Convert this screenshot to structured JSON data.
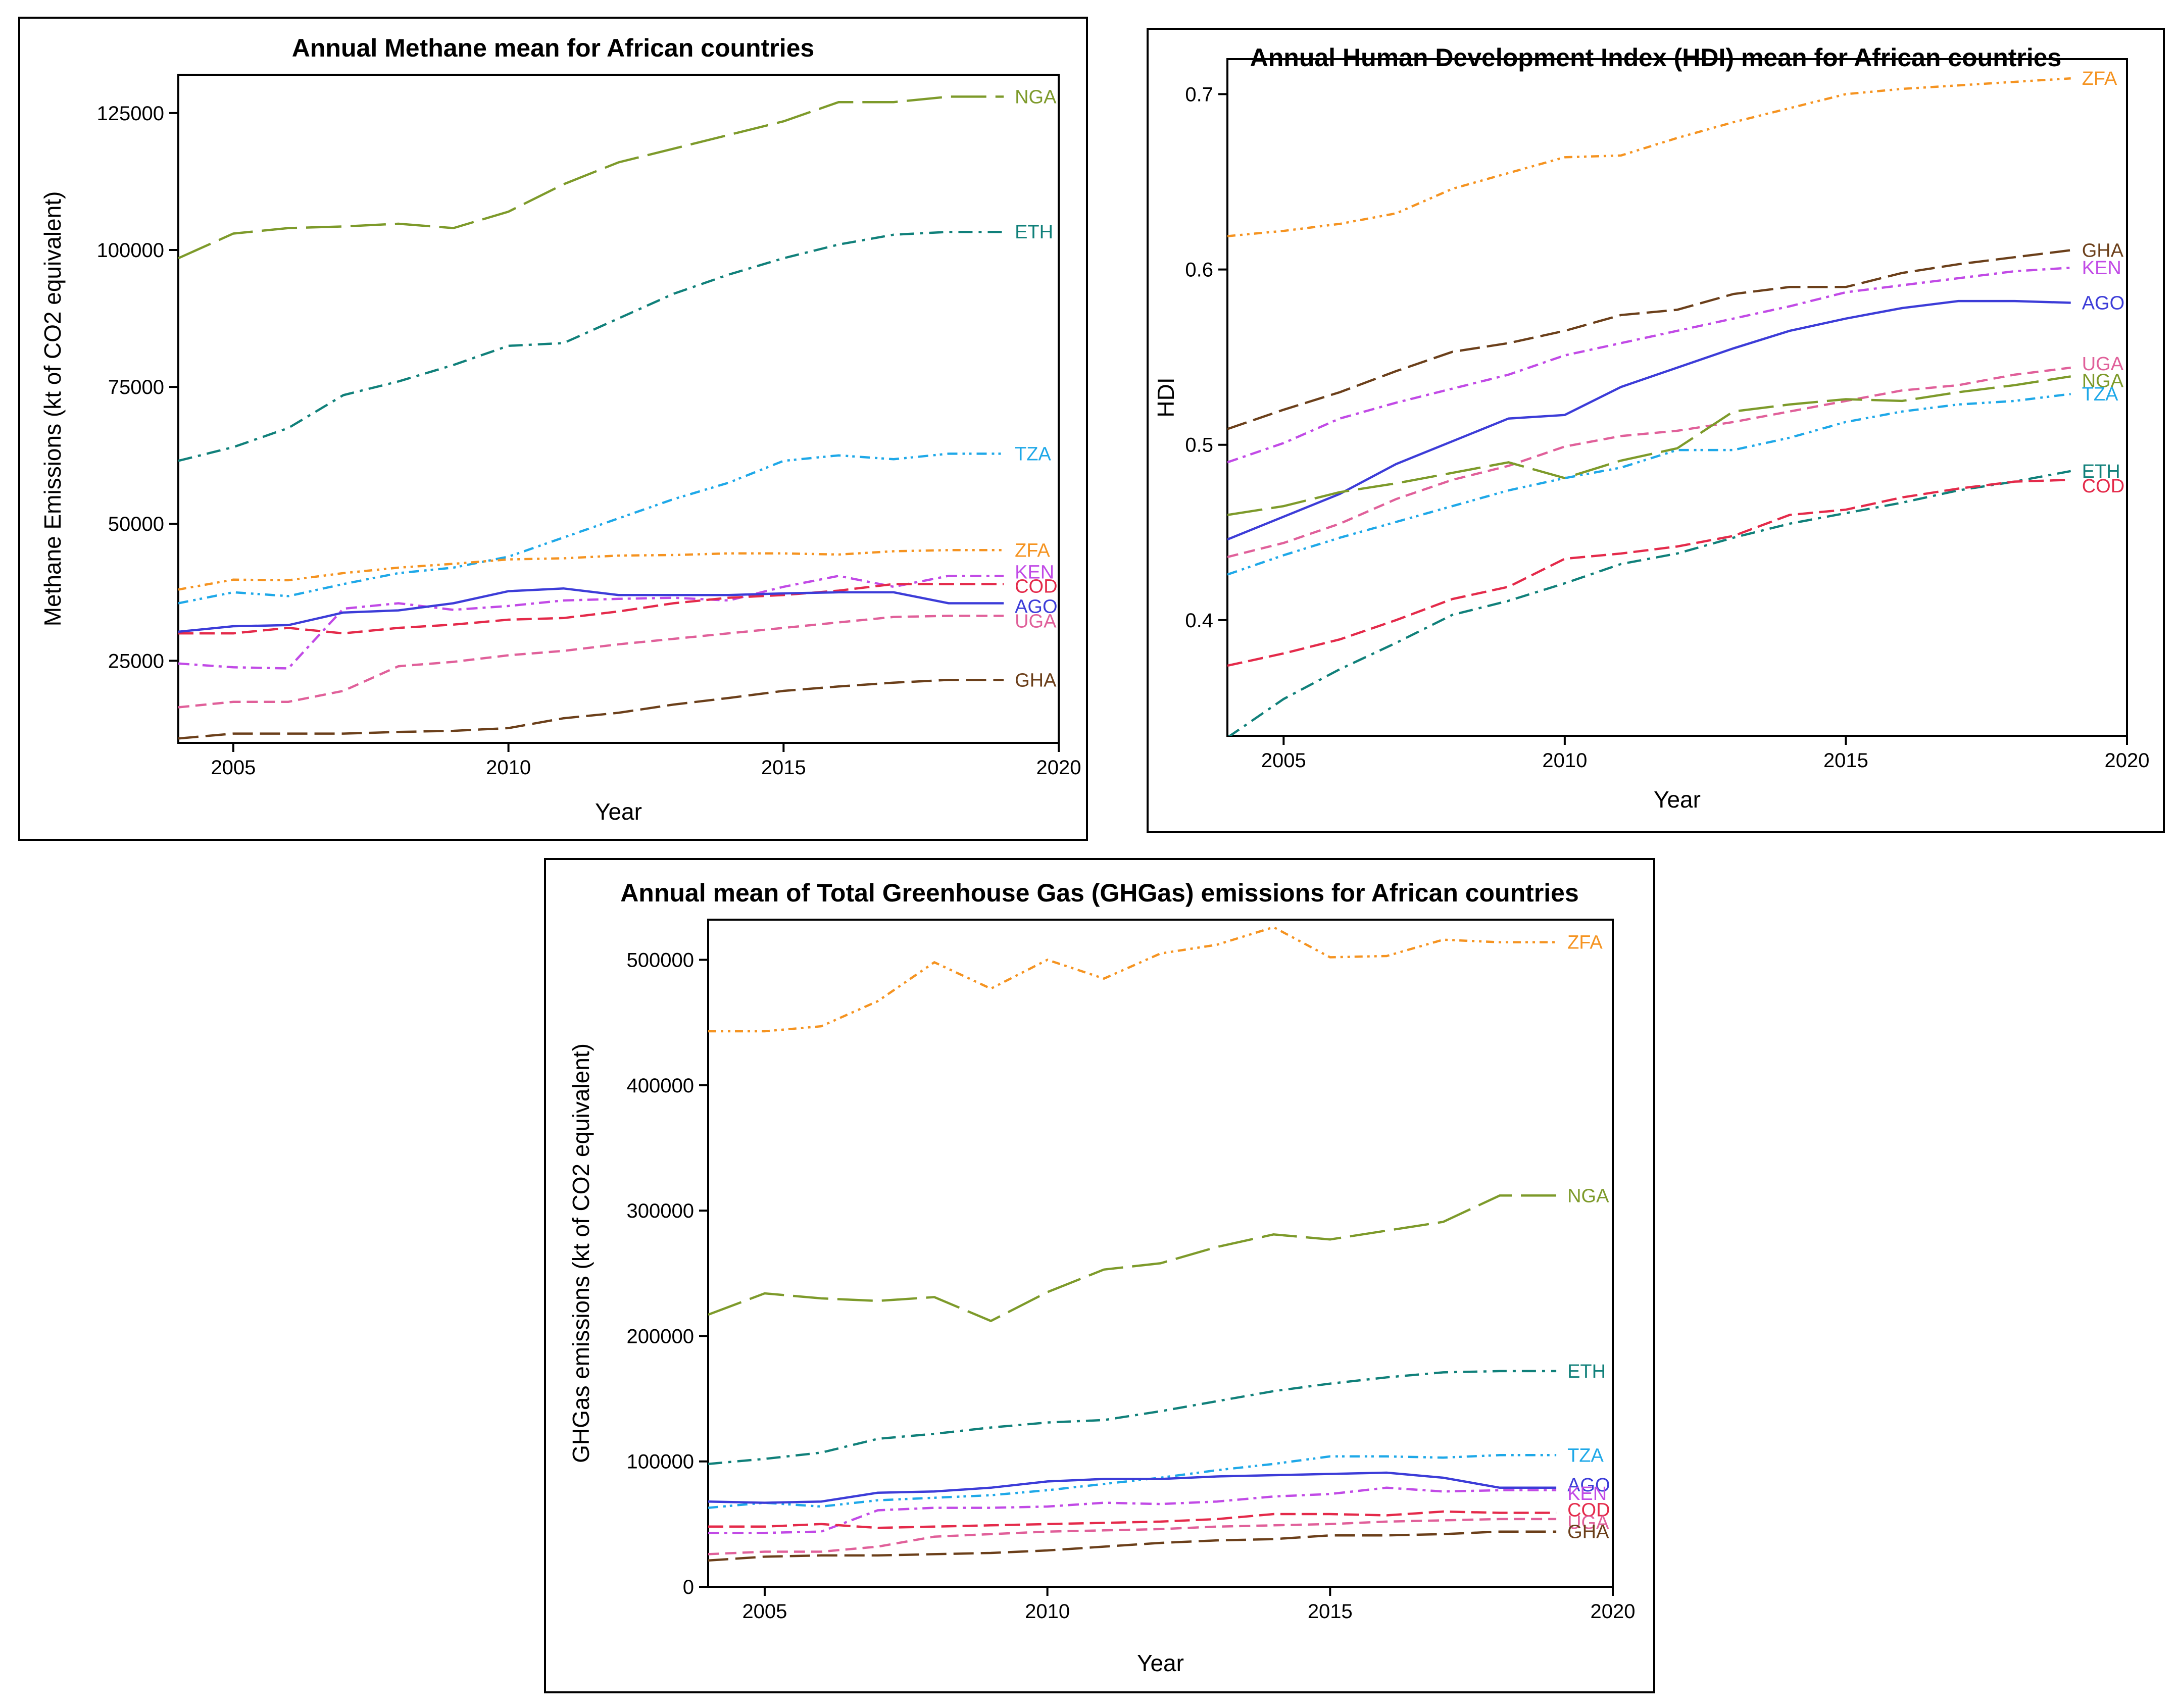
{
  "chart_data": [
    {
      "id": "methane",
      "type": "line",
      "title": "Annual Methane mean for African countries",
      "xlabel": "Year",
      "ylabel": "Methane Emissions (kt of CO2 equivalent)",
      "xlim": [
        2004,
        2020
      ],
      "ylim": [
        10000,
        132000
      ],
      "xticks": [
        2005,
        2010,
        2015,
        2020
      ],
      "yticks": [
        25000,
        50000,
        75000,
        100000,
        125000
      ],
      "x": [
        2004,
        2005,
        2006,
        2007,
        2008,
        2009,
        2010,
        2011,
        2012,
        2013,
        2014,
        2015,
        2016,
        2017,
        2018,
        2019
      ],
      "series": [
        {
          "name": "NGA",
          "values": [
            98500,
            103000,
            104000,
            104300,
            104800,
            104000,
            107000,
            112000,
            116000,
            118500,
            121000,
            123500,
            127000,
            127000,
            128000,
            128000
          ]
        },
        {
          "name": "ETH",
          "values": [
            61500,
            64000,
            67500,
            73500,
            76000,
            79000,
            82500,
            83000,
            87500,
            92000,
            95500,
            98500,
            101000,
            102800,
            103300,
            103300
          ]
        },
        {
          "name": "TZA",
          "values": [
            35500,
            37500,
            36800,
            39000,
            41000,
            42000,
            44000,
            47500,
            51000,
            54500,
            57500,
            61500,
            62500,
            61800,
            62800,
            62800
          ]
        },
        {
          "name": "ZFA",
          "values": [
            38000,
            39800,
            39700,
            41000,
            42000,
            42700,
            43500,
            43700,
            44200,
            44300,
            44600,
            44600,
            44400,
            45000,
            45200,
            45200
          ]
        },
        {
          "name": "KEN",
          "values": [
            24500,
            23800,
            23600,
            34500,
            35500,
            34300,
            35000,
            36000,
            36300,
            36500,
            36000,
            38500,
            40500,
            38500,
            40500,
            40500
          ]
        },
        {
          "name": "COD",
          "values": [
            30000,
            30000,
            31000,
            30000,
            31000,
            31600,
            32500,
            32800,
            34000,
            35500,
            36500,
            37000,
            37800,
            39000,
            39000,
            39000
          ]
        },
        {
          "name": "AGO",
          "values": [
            30300,
            31300,
            31500,
            33800,
            34200,
            35500,
            37700,
            38200,
            37000,
            37000,
            37000,
            37300,
            37500,
            37500,
            35500,
            35500
          ]
        },
        {
          "name": "UGA",
          "values": [
            16500,
            17500,
            17500,
            19500,
            24000,
            24800,
            26000,
            26800,
            28000,
            29000,
            30000,
            31000,
            32000,
            33000,
            33200,
            33200
          ]
        },
        {
          "name": "GHA",
          "values": [
            10800,
            11700,
            11700,
            11700,
            12000,
            12200,
            12700,
            14500,
            15500,
            17000,
            18200,
            19500,
            20300,
            21000,
            21500,
            21500
          ]
        }
      ]
    },
    {
      "id": "hdi",
      "type": "line",
      "title": "Annual Human Development Index (HDI) mean for African countries",
      "xlabel": "Year",
      "ylabel": "HDI",
      "xlim": [
        2004,
        2020
      ],
      "ylim": [
        0.334,
        0.72
      ],
      "xticks": [
        2005,
        2010,
        2015,
        2020
      ],
      "yticks": [
        0.4,
        0.5,
        0.6,
        0.7
      ],
      "x": [
        2004,
        2005,
        2006,
        2007,
        2008,
        2009,
        2010,
        2011,
        2012,
        2013,
        2014,
        2015,
        2016,
        2017,
        2018,
        2019
      ],
      "series": [
        {
          "name": "ZFA",
          "values": [
            0.619,
            0.622,
            0.626,
            0.632,
            0.646,
            0.655,
            0.664,
            0.665,
            0.675,
            0.684,
            0.692,
            0.7,
            0.703,
            0.705,
            0.707,
            0.709
          ]
        },
        {
          "name": "GHA",
          "values": [
            0.509,
            0.52,
            0.53,
            0.542,
            0.553,
            0.558,
            0.565,
            0.574,
            0.577,
            0.586,
            0.59,
            0.59,
            0.598,
            0.603,
            0.607,
            0.611
          ]
        },
        {
          "name": "KEN",
          "values": [
            0.49,
            0.501,
            0.515,
            0.524,
            0.532,
            0.54,
            0.551,
            0.558,
            0.565,
            0.572,
            0.579,
            0.587,
            0.591,
            0.595,
            0.599,
            0.601
          ]
        },
        {
          "name": "AGO",
          "values": [
            0.446,
            0.459,
            0.472,
            0.489,
            0.502,
            0.515,
            0.517,
            0.533,
            0.544,
            0.555,
            0.565,
            0.572,
            0.578,
            0.582,
            0.582,
            0.581
          ]
        },
        {
          "name": "UGA",
          "values": [
            0.436,
            0.444,
            0.455,
            0.469,
            0.48,
            0.488,
            0.499,
            0.505,
            0.508,
            0.513,
            0.519,
            0.525,
            0.531,
            0.534,
            0.54,
            0.544
          ]
        },
        {
          "name": "NGA",
          "values": [
            0.46,
            0.465,
            0.473,
            0.478,
            0.484,
            0.49,
            0.481,
            0.491,
            0.498,
            0.519,
            0.523,
            0.526,
            0.525,
            0.53,
            0.534,
            0.539
          ]
        },
        {
          "name": "TZA",
          "values": [
            0.426,
            0.437,
            0.447,
            0.456,
            0.465,
            0.474,
            0.481,
            0.487,
            0.497,
            0.497,
            0.504,
            0.513,
            0.519,
            0.523,
            0.525,
            0.529
          ]
        },
        {
          "name": "ETH",
          "values": [
            0.333,
            0.355,
            0.372,
            0.387,
            0.403,
            0.411,
            0.421,
            0.432,
            0.438,
            0.447,
            0.455,
            0.461,
            0.467,
            0.474,
            0.479,
            0.485
          ]
        },
        {
          "name": "COD",
          "values": [
            0.374,
            0.381,
            0.389,
            0.4,
            0.412,
            0.419,
            0.435,
            0.438,
            0.442,
            0.448,
            0.46,
            0.463,
            0.47,
            0.475,
            0.479,
            0.48
          ]
        }
      ]
    },
    {
      "id": "ghg",
      "type": "line",
      "title": "Annual mean of Total Greenhouse Gas (GHGas) emissions for African countries",
      "xlabel": "Year",
      "ylabel": "GHGas emissions (kt of CO2 equivalent)",
      "xlim": [
        2004,
        2020
      ],
      "ylim": [
        0,
        532000
      ],
      "xticks": [
        2005,
        2010,
        2015,
        2020
      ],
      "yticks": [
        0,
        100000,
        200000,
        300000,
        400000,
        500000
      ],
      "x": [
        2004,
        2005,
        2006,
        2007,
        2008,
        2009,
        2010,
        2011,
        2012,
        2013,
        2014,
        2015,
        2016,
        2017,
        2018,
        2019
      ],
      "series": [
        {
          "name": "ZFA",
          "values": [
            443000,
            443000,
            447000,
            467000,
            498000,
            477000,
            500000,
            485000,
            505000,
            512000,
            526000,
            502000,
            503000,
            516000,
            514000,
            514000
          ]
        },
        {
          "name": "NGA",
          "values": [
            217000,
            234000,
            230000,
            228000,
            231000,
            212000,
            235000,
            253000,
            258000,
            271000,
            281000,
            277000,
            284000,
            291000,
            312000,
            312000
          ]
        },
        {
          "name": "ETH",
          "values": [
            98000,
            102000,
            107000,
            118000,
            122000,
            127000,
            131000,
            133000,
            140000,
            148000,
            156000,
            162000,
            167000,
            171000,
            172000,
            172000
          ]
        },
        {
          "name": "TZA",
          "values": [
            63000,
            67000,
            64000,
            69000,
            71000,
            73000,
            77000,
            82000,
            87000,
            93000,
            98000,
            104000,
            104000,
            103000,
            105000,
            105000
          ]
        },
        {
          "name": "AGO",
          "values": [
            68000,
            67000,
            68000,
            75000,
            76000,
            79000,
            84000,
            86000,
            86000,
            88000,
            89000,
            90000,
            91000,
            87000,
            79000,
            79000
          ]
        },
        {
          "name": "KEN",
          "values": [
            43000,
            43000,
            44000,
            61000,
            63000,
            63000,
            64000,
            67000,
            66000,
            68000,
            72000,
            74000,
            79000,
            76000,
            77000,
            77000
          ]
        },
        {
          "name": "COD",
          "values": [
            48000,
            48000,
            50000,
            47000,
            48000,
            49000,
            50000,
            51000,
            52000,
            54000,
            58000,
            58000,
            57000,
            60000,
            59000,
            59000
          ]
        },
        {
          "name": "UGA",
          "values": [
            26000,
            28000,
            28000,
            32000,
            40000,
            42000,
            44000,
            45000,
            46000,
            48000,
            49000,
            50000,
            52000,
            53000,
            54000,
            54000
          ]
        },
        {
          "name": "GHA",
          "values": [
            21000,
            24000,
            25000,
            25000,
            26000,
            27000,
            29000,
            32000,
            35000,
            37000,
            38000,
            41000,
            41000,
            42000,
            44000,
            44000
          ]
        }
      ]
    }
  ],
  "series_colors": {
    "NGA": "#7d9a2a",
    "ETH": "#10807a",
    "TZA": "#1ea8e8",
    "ZFA": "#f59320",
    "KEN": "#c14ae6",
    "COD": "#e42a4a",
    "AGO": "#3c3cd8",
    "UGA": "#e0609a",
    "GHA": "#6b3f1a"
  },
  "series_dashes": {
    "NGA": "70,18",
    "ETH": "28,12,6,12",
    "TZA": "20,10,5,8,5,10",
    "ZFA": "16,9,5,9,5,9",
    "KEN": "22,10,6,10",
    "COD": "30,12",
    "AGO": "none",
    "UGA": "22,12",
    "GHA": "40,14"
  }
}
